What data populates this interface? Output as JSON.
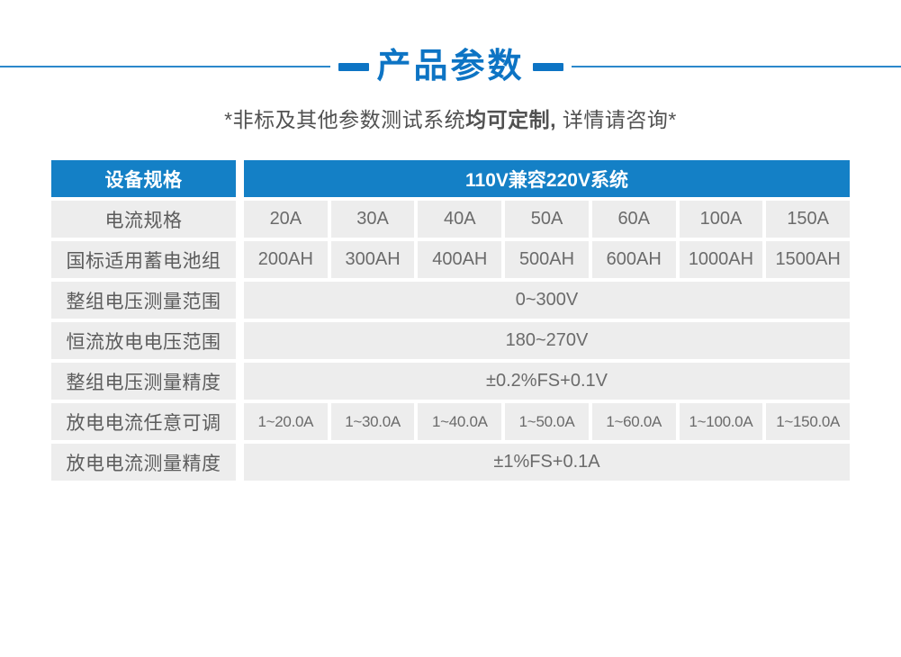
{
  "title": {
    "text": "产品参数"
  },
  "subtitle": {
    "prefix": "*非标及其他参数测试系统",
    "bold": "均可定制,",
    "suffix": " 详情请咨询*"
  },
  "colors": {
    "title_blue": "#0d74c4",
    "header_blue": "#1480c6",
    "line_blue": "#2b88cb",
    "cell_bg": "#ededed",
    "label_text": "#5c5c5c",
    "value_text": "#6b6b6b",
    "subtitle_text": "#515151"
  },
  "table": {
    "corner_header": "设备规格",
    "system_header": "110V兼容220V系统",
    "rows": [
      {
        "label": "电流规格",
        "cells": [
          "20A",
          "30A",
          "40A",
          "50A",
          "60A",
          "100A",
          "150A"
        ]
      },
      {
        "label": "国标适用蓄电池组",
        "cells": [
          "200AH",
          "300AH",
          "400AH",
          "500AH",
          "600AH",
          "1000AH",
          "1500AH"
        ]
      },
      {
        "label": "整组电压测量范围",
        "merged": "0~300V"
      },
      {
        "label": "恒流放电电压范围",
        "merged": "180~270V"
      },
      {
        "label": "整组电压测量精度",
        "merged": "±0.2%FS+0.1V"
      },
      {
        "label": "放电电流任意可调",
        "cells": [
          "1~20.0A",
          "1~30.0A",
          "1~40.0A",
          "1~50.0A",
          "1~60.0A",
          "1~100.0A",
          "1~150.0A"
        ]
      },
      {
        "label": "放电电流测量精度",
        "merged": "±1%FS+0.1A"
      }
    ]
  }
}
